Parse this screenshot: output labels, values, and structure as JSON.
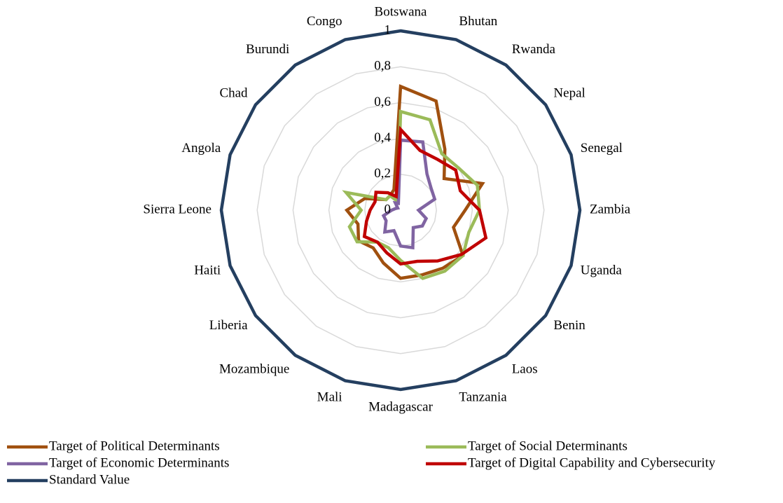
{
  "chart_data": {
    "type": "radar",
    "categories": [
      "Botswana",
      "Bhutan",
      "Rwanda",
      "Nepal",
      "Senegal",
      "Zambia",
      "Uganda",
      "Benin",
      "Laos",
      "Tanzania",
      "Madagascar",
      "Mali",
      "Mozambique",
      "Liberia",
      "Haiti",
      "Sierra Leone",
      "Angola",
      "Chad",
      "Burundi",
      "Congo"
    ],
    "ylim": [
      0,
      1
    ],
    "yticks": [
      0,
      {
        "value": 0.2,
        "label": "0,2"
      },
      {
        "value": 0.4,
        "label": "0,4"
      },
      {
        "value": 0.6,
        "label": "0,6"
      },
      {
        "value": 0.8,
        "label": "0,8"
      },
      1
    ],
    "grid": true,
    "series": [
      {
        "name": "Target of Political Determinants",
        "color": "#a0500f",
        "values": [
          0.69,
          0.64,
          0.42,
          0.3,
          0.48,
          0.36,
          0.31,
          0.43,
          0.4,
          0.38,
          0.38,
          0.31,
          0.26,
          0.29,
          0.25,
          0.3,
          0.21,
          0.1,
          0.1,
          0.12
        ]
      },
      {
        "name": "Target of Social Determinants",
        "color": "#9bbb59",
        "values": [
          0.55,
          0.53,
          0.39,
          0.4,
          0.45,
          0.44,
          0.4,
          0.43,
          0.42,
          0.4,
          0.28,
          0.22,
          0.22,
          0.3,
          0.3,
          0.22,
          0.32,
          0.1,
          0.1,
          0.05
        ]
      },
      {
        "name": "Target of Economic Determinants",
        "color": "#8064a2",
        "values": [
          0.39,
          0.4,
          0.25,
          0.21,
          0.2,
          0.1,
          0.15,
          0.15,
          0.12,
          0.22,
          0.2,
          0.12,
          0.15,
          0.1,
          0.1,
          0.05,
          0.03,
          0.02,
          0.05,
          0.04
        ]
      },
      {
        "name": "Target of Digital Capability and Cybersecurity",
        "color": "#c00000",
        "values": [
          0.45,
          0.35,
          0.35,
          0.38,
          0.35,
          0.44,
          0.5,
          0.42,
          0.35,
          0.3,
          0.3,
          0.25,
          0.22,
          0.25,
          0.2,
          0.17,
          0.15,
          0.17,
          0.12,
          0.08
        ]
      },
      {
        "name": "Standard Value",
        "color": "#243f60",
        "values": [
          1,
          1,
          1,
          1,
          1,
          1,
          1,
          1,
          1,
          1,
          1,
          1,
          1,
          1,
          1,
          1,
          1,
          1,
          1,
          1
        ]
      }
    ]
  }
}
